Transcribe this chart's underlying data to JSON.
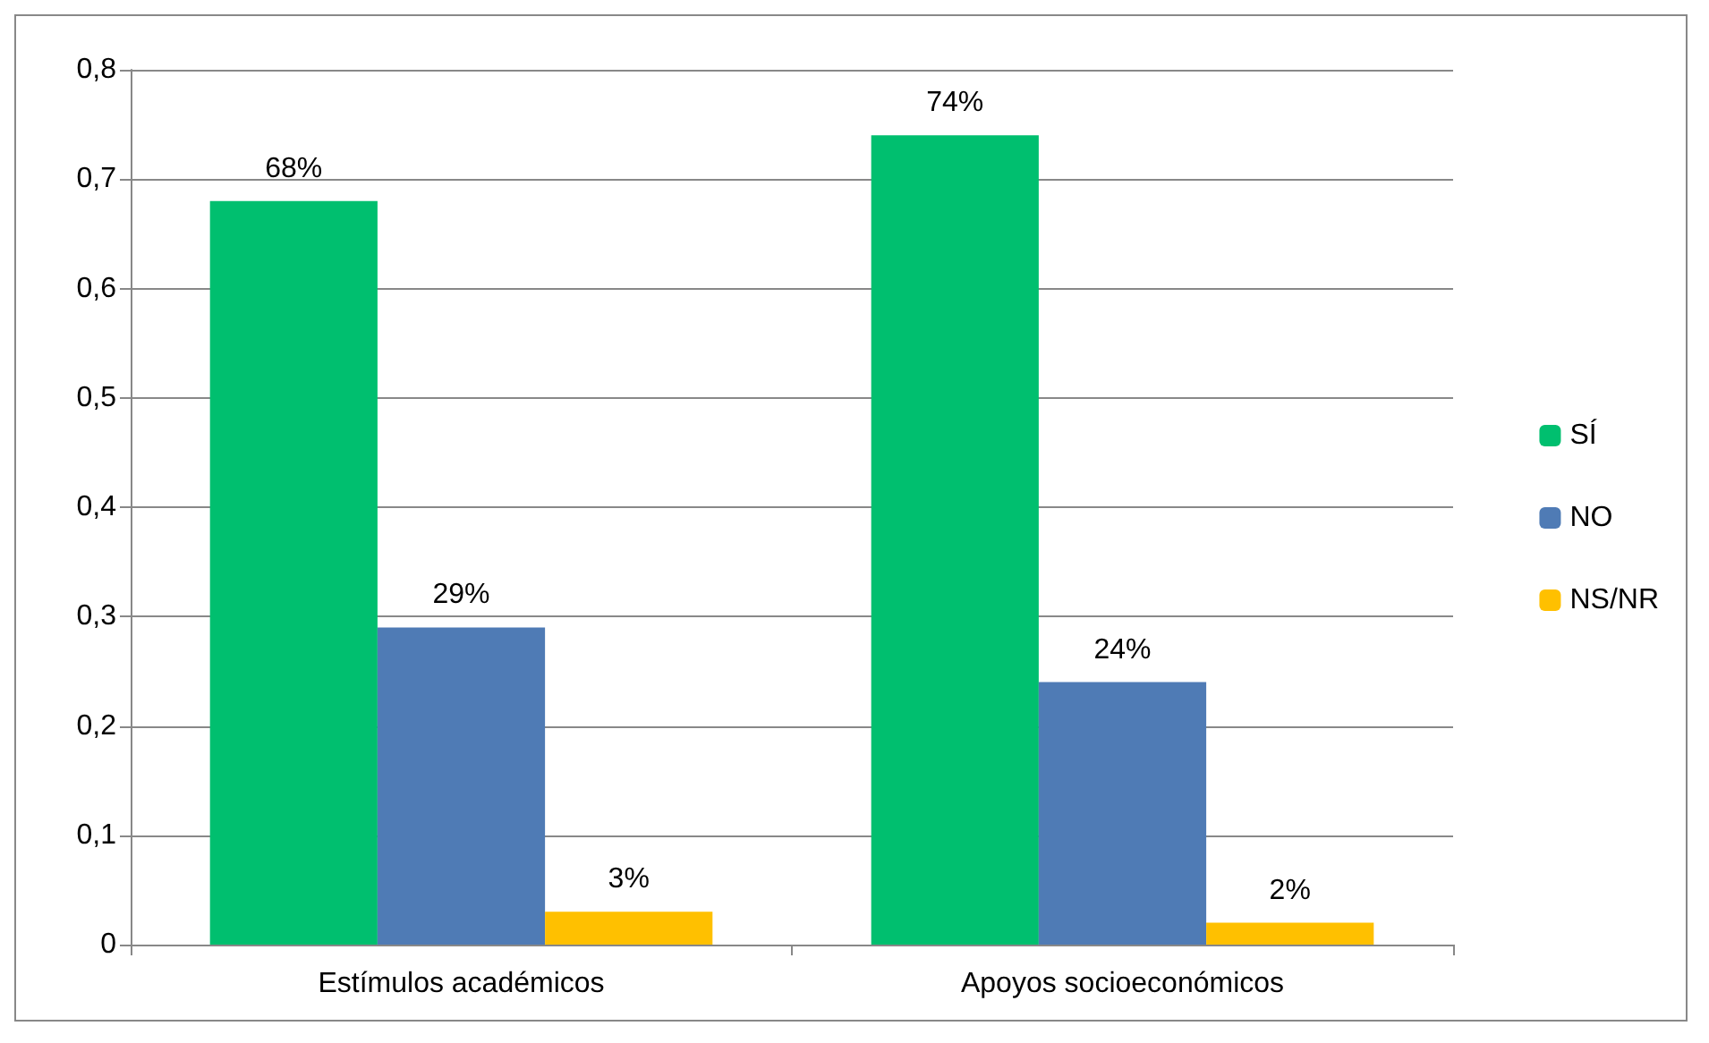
{
  "chart_data": {
    "type": "bar",
    "categories": [
      "Estímulos académicos",
      "Apoyos socioeconómicos"
    ],
    "series": [
      {
        "name": "SÍ",
        "color": "#00bf6f",
        "values": [
          0.68,
          0.74
        ],
        "value_labels": [
          "68%",
          "74%"
        ]
      },
      {
        "name": "NO",
        "color": "#4f7bb5",
        "values": [
          0.29,
          0.24
        ],
        "value_labels": [
          "29%",
          "24%"
        ]
      },
      {
        "name": "NS/NR",
        "color": "#ffc000",
        "values": [
          0.03,
          0.02
        ],
        "value_labels": [
          "3%",
          "2%"
        ]
      }
    ],
    "ylim": [
      0,
      0.8
    ],
    "yticks": [
      {
        "value": 0,
        "label": "0"
      },
      {
        "value": 0.1,
        "label": "0,1"
      },
      {
        "value": 0.2,
        "label": "0,2"
      },
      {
        "value": 0.3,
        "label": "0,3"
      },
      {
        "value": 0.4,
        "label": "0,4"
      },
      {
        "value": 0.5,
        "label": "0,5"
      },
      {
        "value": 0.6,
        "label": "0,6"
      },
      {
        "value": 0.7,
        "label": "0,7"
      },
      {
        "value": 0.8,
        "label": "0,8"
      }
    ],
    "grid": "y",
    "legend": "right"
  }
}
